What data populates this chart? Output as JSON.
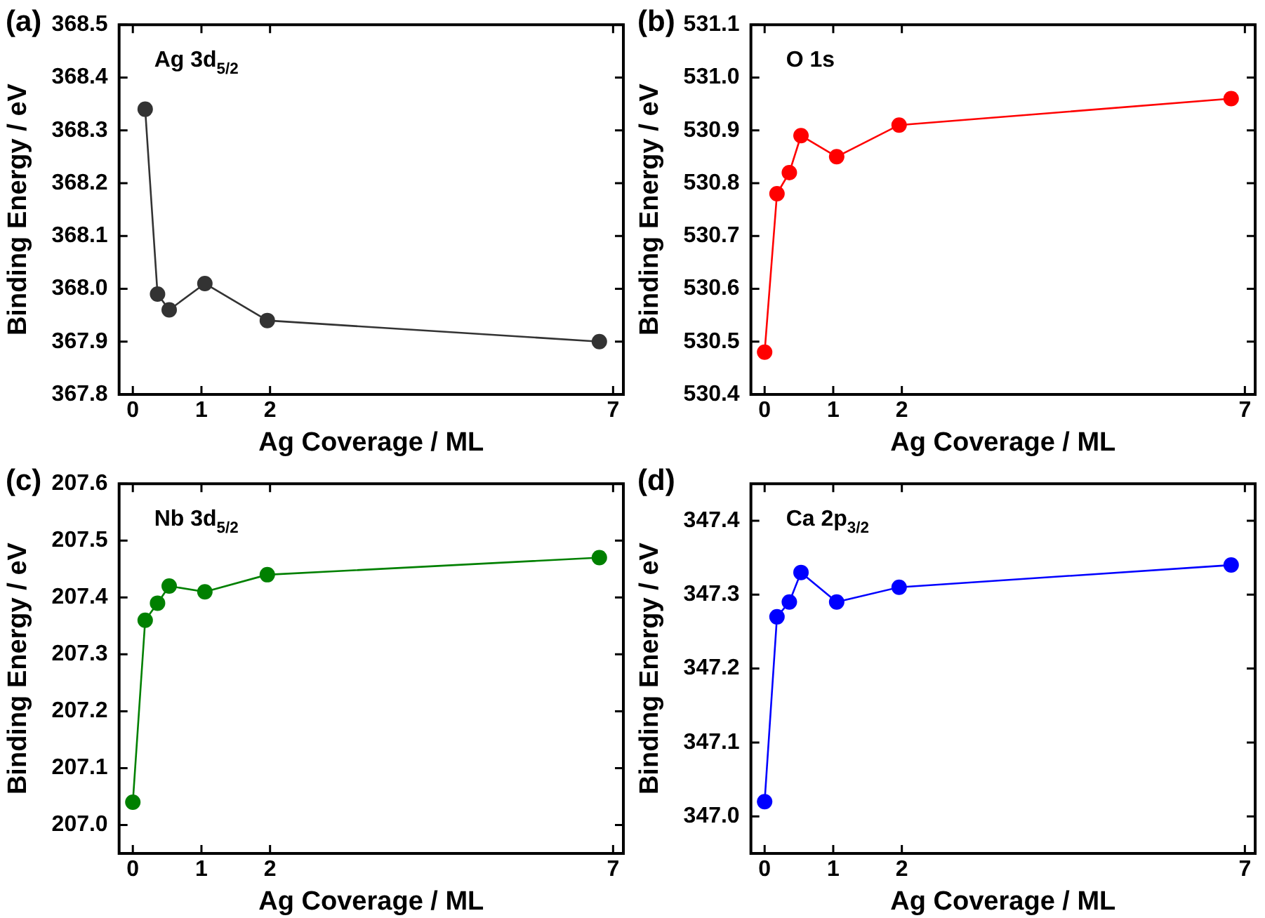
{
  "chart_data": [
    {
      "type": "line",
      "title": "(a)",
      "xlabel": "Ag Coverage / ML",
      "ylabel": "Binding Energy / eV",
      "annotations": [
        "Ag 3d$_{5/2}$"
      ],
      "x": [
        0.18,
        0.36,
        0.53,
        1.05,
        1.96,
        6.8
      ],
      "series": [
        {
          "color": "#333333",
          "values": [
            368.34,
            367.99,
            367.96,
            368.01,
            367.94,
            367.9
          ]
        }
      ],
      "xlim": [
        -0.2,
        7.15
      ],
      "xticks": [
        0,
        1,
        2,
        7
      ],
      "ylim": [
        367.8,
        368.5
      ],
      "yticks": [
        367.8,
        367.9,
        {
          "value": 368.0,
          "label": "368.0"
        },
        368.1,
        368.2,
        368.3,
        368.4,
        368.5
      ],
      "marker": "circle",
      "grid": false,
      "legend": false
    },
    {
      "type": "line",
      "title": "(b)",
      "xlabel": "Ag Coverage / ML",
      "ylabel": "Binding Energy / eV",
      "annotations": [
        "O 1s"
      ],
      "x": [
        0,
        0.18,
        0.36,
        0.53,
        1.05,
        1.96,
        6.8
      ],
      "series": [
        {
          "color": "#ff0000",
          "values": [
            530.48,
            530.78,
            530.82,
            530.89,
            530.85,
            530.91,
            530.96
          ]
        }
      ],
      "xlim": [
        -0.2,
        7.15
      ],
      "xticks": [
        0,
        1,
        2,
        7
      ],
      "ylim": [
        530.4,
        531.1
      ],
      "yticks": [
        530.4,
        530.5,
        530.6,
        530.7,
        530.8,
        530.9,
        {
          "value": 531.0,
          "label": "531.0"
        },
        531.1
      ],
      "marker": "circle",
      "grid": false,
      "legend": false
    },
    {
      "type": "line",
      "title": "(c)",
      "xlabel": "Ag Coverage / ML",
      "ylabel": "Binding Energy / eV",
      "annotations": [
        "Nb 3d$_{5/2}$"
      ],
      "x": [
        0,
        0.18,
        0.36,
        0.53,
        1.05,
        1.96,
        6.8
      ],
      "series": [
        {
          "color": "#008000",
          "values": [
            207.04,
            207.36,
            207.39,
            207.42,
            207.41,
            207.44,
            207.47
          ]
        }
      ],
      "xlim": [
        -0.2,
        7.15
      ],
      "xticks": [
        0,
        1,
        2,
        7
      ],
      "ylim": [
        206.95,
        207.6
      ],
      "yticks": [
        {
          "value": 207.0,
          "label": "207.0"
        },
        207.1,
        207.2,
        207.3,
        207.4,
        207.5,
        207.6
      ],
      "marker": "circle",
      "grid": false,
      "legend": false
    },
    {
      "type": "line",
      "title": "(d)",
      "xlabel": "Ag Coverage / ML",
      "ylabel": "Binding Energy / eV",
      "annotations": [
        "Ca 2p$_{3/2}$"
      ],
      "x": [
        0,
        0.18,
        0.36,
        0.53,
        1.05,
        1.96,
        6.8
      ],
      "series": [
        {
          "color": "#0000ff",
          "values": [
            347.02,
            347.27,
            347.29,
            347.33,
            347.29,
            347.31,
            347.34
          ]
        }
      ],
      "xlim": [
        -0.2,
        7.15
      ],
      "xticks": [
        0,
        1,
        2,
        7
      ],
      "ylim": [
        346.95,
        347.45
      ],
      "yticks": [
        {
          "value": 347.0,
          "label": "347.0"
        },
        347.1,
        347.2,
        347.3,
        347.4
      ],
      "marker": "circle",
      "grid": false,
      "legend": false
    }
  ]
}
